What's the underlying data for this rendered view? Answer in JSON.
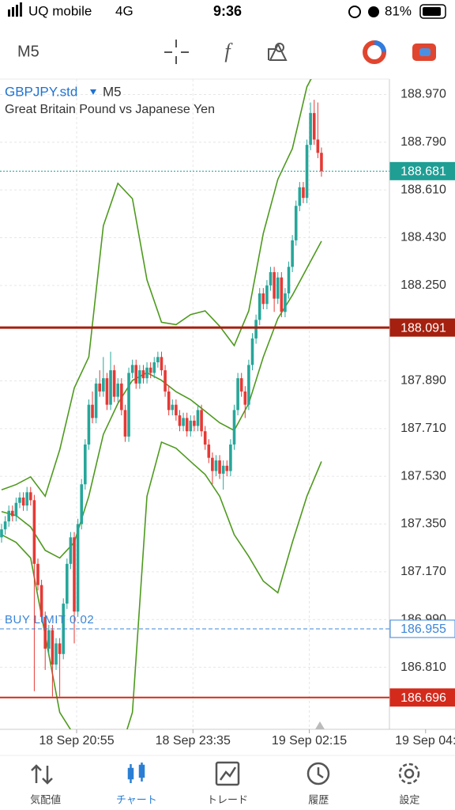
{
  "status_bar": {
    "carrier": "UQ mobile",
    "network": "4G",
    "time": "9:36",
    "battery": "81%"
  },
  "toolbar": {
    "timeframe": "M5"
  },
  "chart_data": {
    "type": "candlestick",
    "symbol": "GBPJPY.std",
    "timeframe": "M5",
    "subtitle": "Great Britain Pound vs Japanese Yen",
    "up_color": "#26a69a",
    "down_color": "#e53935",
    "grid": true,
    "ylim": [
      186.576,
      189.028
    ],
    "xlim": [
      -0.43,
      106.7
    ],
    "yticks": [
      {
        "value": 188.97,
        "label": "188.970"
      },
      {
        "value": 188.79,
        "label": "188.790"
      },
      {
        "value": 188.61,
        "label": "188.610"
      },
      {
        "value": 188.43,
        "label": "188.430"
      },
      {
        "value": 188.25,
        "label": "188.250"
      },
      {
        "value": 187.89,
        "label": "187.890"
      },
      {
        "value": 187.71,
        "label": "187.710"
      },
      {
        "value": 187.53,
        "label": "187.530"
      },
      {
        "value": 187.35,
        "label": "187.350"
      },
      {
        "value": 187.17,
        "label": "187.170"
      },
      {
        "value": 186.99,
        "label": "186.990"
      },
      {
        "value": 186.81,
        "label": "186.810"
      }
    ],
    "xticks": [
      {
        "value": 20.65,
        "label": "18 Sep 20:55"
      },
      {
        "value": 52.65,
        "label": "18 Sep 23:35"
      },
      {
        "value": 84.65,
        "label": "19 Sep 02:15"
      },
      {
        "value": 116.65,
        "label": "19 Sep 04:"
      }
    ],
    "candles": [
      [
        187.3,
        187.35,
        187.28,
        187.33
      ],
      [
        187.33,
        187.38,
        187.31,
        187.36
      ],
      [
        187.36,
        187.42,
        187.34,
        187.4
      ],
      [
        187.4,
        187.42,
        187.36,
        187.38
      ],
      [
        187.38,
        187.45,
        187.36,
        187.43
      ],
      [
        187.43,
        187.47,
        187.41,
        187.45
      ],
      [
        187.45,
        187.47,
        187.4,
        187.42
      ],
      [
        187.42,
        187.49,
        187.4,
        187.47
      ],
      [
        187.47,
        187.49,
        187.42,
        187.44
      ],
      [
        187.44,
        187.46,
        186.72,
        187.2
      ],
      [
        187.2,
        187.22,
        187.1,
        187.12
      ],
      [
        187.12,
        187.14,
        186.98,
        187.0
      ],
      [
        187.0,
        187.02,
        186.8,
        186.88
      ],
      [
        186.88,
        186.97,
        186.86,
        186.95
      ],
      [
        186.95,
        186.97,
        186.7,
        186.82
      ],
      [
        186.82,
        186.92,
        186.8,
        186.9
      ],
      [
        186.9,
        186.92,
        186.7,
        186.86
      ],
      [
        186.86,
        187.07,
        186.84,
        187.05
      ],
      [
        187.05,
        187.22,
        187.03,
        187.2
      ],
      [
        187.2,
        187.32,
        187.18,
        187.3
      ],
      [
        187.3,
        187.32,
        186.9,
        187.02
      ],
      [
        187.02,
        187.37,
        187.0,
        187.35
      ],
      [
        187.35,
        187.52,
        187.33,
        187.5
      ],
      [
        187.5,
        187.67,
        187.48,
        187.65
      ],
      [
        187.65,
        187.82,
        187.63,
        187.8
      ],
      [
        187.8,
        187.85,
        187.73,
        187.75
      ],
      [
        187.75,
        187.9,
        187.73,
        187.88
      ],
      [
        187.88,
        187.93,
        187.83,
        187.85
      ],
      [
        187.85,
        187.98,
        187.83,
        187.9
      ],
      [
        187.9,
        187.92,
        187.78,
        187.8
      ],
      [
        187.8,
        188.0,
        187.78,
        187.93
      ],
      [
        187.93,
        187.95,
        187.81,
        187.83
      ],
      [
        187.83,
        187.9,
        187.81,
        187.88
      ],
      [
        187.88,
        187.9,
        187.76,
        187.78
      ],
      [
        187.78,
        187.8,
        187.66,
        187.68
      ],
      [
        187.68,
        187.94,
        187.66,
        187.92
      ],
      [
        187.92,
        187.97,
        187.9,
        187.95
      ],
      [
        187.95,
        187.97,
        187.86,
        187.88
      ],
      [
        187.88,
        187.95,
        187.86,
        187.93
      ],
      [
        187.93,
        187.95,
        187.88,
        187.9
      ],
      [
        187.9,
        187.96,
        187.88,
        187.94
      ],
      [
        187.94,
        187.96,
        187.9,
        187.92
      ],
      [
        187.92,
        187.98,
        187.9,
        187.96
      ],
      [
        187.96,
        188.0,
        187.94,
        187.98
      ],
      [
        187.98,
        188.0,
        187.91,
        187.93
      ],
      [
        187.93,
        187.95,
        187.83,
        187.85
      ],
      [
        187.85,
        187.87,
        187.76,
        187.78
      ],
      [
        187.78,
        187.82,
        187.76,
        187.8
      ],
      [
        187.8,
        187.82,
        187.74,
        187.76
      ],
      [
        187.76,
        187.78,
        187.7,
        187.72
      ],
      [
        187.72,
        187.77,
        187.7,
        187.75
      ],
      [
        187.75,
        187.77,
        187.68,
        187.7
      ],
      [
        187.7,
        187.76,
        187.68,
        187.74
      ],
      [
        187.74,
        187.76,
        187.7,
        187.72
      ],
      [
        187.72,
        187.8,
        187.7,
        187.78
      ],
      [
        187.78,
        187.8,
        187.68,
        187.7
      ],
      [
        187.7,
        187.72,
        187.63,
        187.65
      ],
      [
        187.65,
        187.67,
        187.58,
        187.6
      ],
      [
        187.6,
        187.62,
        187.5,
        187.55
      ],
      [
        187.55,
        187.61,
        187.53,
        187.59
      ],
      [
        187.59,
        187.61,
        187.52,
        187.54
      ],
      [
        187.54,
        187.59,
        187.48,
        187.57
      ],
      [
        187.57,
        187.59,
        187.53,
        187.55
      ],
      [
        187.55,
        187.67,
        187.53,
        187.65
      ],
      [
        187.65,
        187.8,
        187.63,
        187.78
      ],
      [
        187.78,
        187.92,
        187.76,
        187.9
      ],
      [
        187.9,
        187.92,
        187.83,
        187.85
      ],
      [
        187.85,
        187.87,
        187.75,
        187.8
      ],
      [
        187.8,
        187.97,
        187.78,
        187.95
      ],
      [
        187.95,
        188.07,
        187.93,
        188.05
      ],
      [
        188.05,
        188.14,
        188.03,
        188.12
      ],
      [
        188.12,
        188.24,
        188.1,
        188.22
      ],
      [
        188.22,
        188.24,
        188.16,
        188.18
      ],
      [
        188.18,
        188.27,
        188.16,
        188.25
      ],
      [
        188.25,
        188.32,
        188.23,
        188.3
      ],
      [
        188.3,
        188.32,
        188.15,
        188.2
      ],
      [
        188.2,
        188.3,
        188.18,
        188.28
      ],
      [
        188.28,
        188.3,
        188.13,
        188.15
      ],
      [
        188.15,
        188.24,
        188.13,
        188.22
      ],
      [
        188.22,
        188.34,
        188.2,
        188.32
      ],
      [
        188.32,
        188.44,
        188.3,
        188.42
      ],
      [
        188.42,
        188.57,
        188.4,
        188.55
      ],
      [
        188.55,
        188.64,
        188.53,
        188.62
      ],
      [
        188.62,
        188.64,
        188.56,
        188.58
      ],
      [
        188.58,
        188.8,
        188.56,
        188.78
      ],
      [
        188.78,
        188.94,
        188.76,
        188.9
      ],
      [
        188.9,
        188.95,
        188.78,
        188.8
      ],
      [
        188.8,
        188.94,
        188.73,
        188.75
      ],
      [
        188.75,
        188.77,
        188.66,
        188.681
      ]
    ],
    "bands": [
      {
        "color": "#4e9a1e",
        "x": [
          0,
          4,
          8,
          12,
          16,
          20,
          24,
          28,
          32,
          36,
          40,
          44,
          48,
          52,
          56,
          60,
          64,
          68,
          72,
          76,
          80,
          84,
          88
        ],
        "values": [
          187.479,
          187.499,
          187.528,
          187.455,
          187.63,
          187.863,
          187.98,
          188.475,
          188.635,
          188.577,
          188.271,
          188.111,
          188.102,
          188.14,
          188.154,
          188.096,
          188.023,
          188.154,
          188.446,
          188.65,
          188.766,
          188.999,
          189.101
        ]
      },
      {
        "color": "#4e9a1e",
        "x": [
          0,
          4,
          8,
          12,
          16,
          20,
          24,
          28,
          32,
          36,
          40,
          44,
          48,
          52,
          56,
          60,
          64,
          68,
          72,
          76,
          80,
          84,
          88
        ],
        "values": [
          187.397,
          187.382,
          187.339,
          187.251,
          187.222,
          187.281,
          187.455,
          187.688,
          187.805,
          187.892,
          187.921,
          187.892,
          187.849,
          187.819,
          187.776,
          187.732,
          187.703,
          187.805,
          187.98,
          188.125,
          188.213,
          188.315,
          188.417
        ]
      },
      {
        "color": "#4e9a1e",
        "x": [
          0,
          4,
          8,
          12,
          16,
          20,
          24,
          28,
          32,
          36,
          40,
          44,
          48,
          52,
          56,
          60,
          64,
          68,
          72,
          76,
          80,
          84,
          88
        ],
        "values": [
          187.31,
          187.281,
          187.222,
          186.931,
          186.64,
          186.553,
          186.436,
          186.378,
          186.465,
          186.64,
          187.455,
          187.659,
          187.636,
          187.586,
          187.537,
          187.455,
          187.31,
          187.228,
          187.135,
          187.091,
          187.281,
          187.455,
          187.586
        ]
      }
    ],
    "price_lines": [
      {
        "value": 188.681,
        "color": "#1f9e94",
        "style": "dotted",
        "width": 1,
        "box": "filled"
      },
      {
        "value": 188.091,
        "color": "#a5200f",
        "style": "solid",
        "width": 3,
        "box": "filled"
      },
      {
        "value": 186.955,
        "color": "#3b86d6",
        "style": "dashed",
        "width": 1,
        "box": "outline",
        "text": "BUY LIMIT 0.02"
      },
      {
        "value": 186.696,
        "color": "#d32a1c",
        "style": "solid",
        "width": 2,
        "box": "filled"
      }
    ]
  },
  "nav": {
    "active": 1,
    "items": [
      "気配値",
      "チャート",
      "トレード",
      "履歴",
      "設定"
    ]
  }
}
